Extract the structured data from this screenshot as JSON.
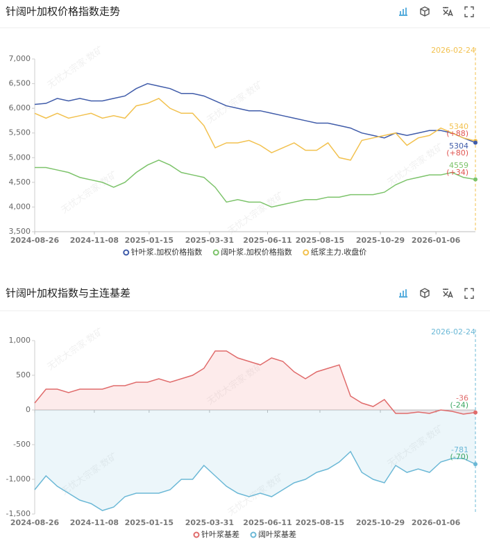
{
  "watermark": "无忧大宗家·数矿",
  "chart_data": [
    {
      "type": "line",
      "title": "针阔叶加权价格指数走势",
      "x": [
        "2024-08-26",
        "2024-09-09",
        "2024-09-23",
        "2024-10-07",
        "2024-10-21",
        "2024-11-04",
        "2024-11-18",
        "2024-12-02",
        "2024-12-16",
        "2024-12-30",
        "2025-01-13",
        "2025-01-27",
        "2025-02-10",
        "2025-02-24",
        "2025-03-10",
        "2025-03-24",
        "2025-04-07",
        "2025-04-21",
        "2025-05-05",
        "2025-05-19",
        "2025-06-02",
        "2025-06-16",
        "2025-06-30",
        "2025-07-14",
        "2025-07-28",
        "2025-08-11",
        "2025-08-25",
        "2025-09-08",
        "2025-09-22",
        "2025-10-06",
        "2025-10-20",
        "2025-11-03",
        "2025-11-17",
        "2025-12-01",
        "2025-12-15",
        "2025-12-29",
        "2026-01-12",
        "2026-01-26",
        "2026-02-09",
        "2026-02-24"
      ],
      "xlim": [
        "2024-08-26",
        "2026-02-24"
      ],
      "xticks": [
        "2024-08-26",
        "2024-11-08",
        "2025-01-15",
        "2025-03-31",
        "2025-06-11",
        "2025-08-15",
        "2025-10-29",
        "2026-01-06"
      ],
      "ylim": [
        3500,
        7000
      ],
      "yticks": [
        {
          "value": 3500,
          "label": "3,500"
        },
        {
          "value": 4000,
          "label": "4,000"
        },
        {
          "value": 4500,
          "label": "4,500"
        },
        {
          "value": 5000,
          "label": "5,000"
        },
        {
          "value": 5500,
          "label": "5,500"
        },
        {
          "value": 6000,
          "label": "6,000"
        },
        {
          "value": 6500,
          "label": "6,500"
        },
        {
          "value": 7000,
          "label": "7,000"
        }
      ],
      "cursor_color": "#f2c14e",
      "series": [
        {
          "name": "针叶浆.加权价格指数",
          "color": "#3f5ba9",
          "change_label": "(+80)",
          "change_color": "#e0534f",
          "values": [
            6080,
            6100,
            6200,
            6150,
            6200,
            6150,
            6150,
            6200,
            6250,
            6400,
            6500,
            6450,
            6400,
            6300,
            6300,
            6250,
            6150,
            6050,
            6000,
            5950,
            5950,
            5900,
            5850,
            5800,
            5750,
            5700,
            5700,
            5650,
            5600,
            5500,
            5450,
            5400,
            5500,
            5450,
            5500,
            5550,
            5550,
            5500,
            5400,
            5304
          ]
        },
        {
          "name": "阔叶浆.加权价格指数",
          "color": "#7cc36a",
          "change_label": "(+34)",
          "change_color": "#e0534f",
          "values": [
            4800,
            4800,
            4750,
            4700,
            4600,
            4550,
            4500,
            4400,
            4500,
            4700,
            4850,
            4950,
            4850,
            4700,
            4650,
            4600,
            4400,
            4100,
            4150,
            4100,
            4100,
            4000,
            4050,
            4100,
            4150,
            4150,
            4200,
            4200,
            4250,
            4250,
            4250,
            4300,
            4450,
            4550,
            4600,
            4650,
            4650,
            4700,
            4600,
            4559
          ]
        },
        {
          "name": "纸浆主力.收盘价",
          "color": "#f2c14e",
          "change_label": "(+88)",
          "change_color": "#e0534f",
          "values": [
            5900,
            5800,
            5900,
            5800,
            5850,
            5900,
            5800,
            5850,
            5800,
            6050,
            6100,
            6200,
            6000,
            5900,
            5900,
            5650,
            5200,
            5300,
            5300,
            5350,
            5250,
            5100,
            5200,
            5300,
            5150,
            5150,
            5300,
            5000,
            4950,
            5350,
            5400,
            5450,
            5500,
            5250,
            5400,
            5450,
            5600,
            5500,
            5400,
            5340
          ]
        }
      ]
    },
    {
      "type": "line",
      "title": "针阔叶加权指数与主连基差",
      "x": [
        "2024-08-26",
        "2024-09-09",
        "2024-09-23",
        "2024-10-07",
        "2024-10-21",
        "2024-11-04",
        "2024-11-18",
        "2024-12-02",
        "2024-12-16",
        "2024-12-30",
        "2025-01-13",
        "2025-01-27",
        "2025-02-10",
        "2025-02-24",
        "2025-03-10",
        "2025-03-24",
        "2025-04-07",
        "2025-04-21",
        "2025-05-05",
        "2025-05-19",
        "2025-06-02",
        "2025-06-16",
        "2025-06-30",
        "2025-07-14",
        "2025-07-28",
        "2025-08-11",
        "2025-08-25",
        "2025-09-08",
        "2025-09-22",
        "2025-10-06",
        "2025-10-20",
        "2025-11-03",
        "2025-11-17",
        "2025-12-01",
        "2025-12-15",
        "2025-12-29",
        "2026-01-12",
        "2026-01-26",
        "2026-02-09",
        "2026-02-24"
      ],
      "xlim": [
        "2024-08-26",
        "2026-02-24"
      ],
      "xticks": [
        "2024-08-26",
        "2024-11-08",
        "2025-01-15",
        "2025-03-31",
        "2025-06-11",
        "2025-08-15",
        "2025-10-29",
        "2026-01-06"
      ],
      "ylim": [
        -1500,
        1000
      ],
      "yticks": [
        {
          "value": -1500,
          "label": "-1,500"
        },
        {
          "value": -1000,
          "label": "-1,000"
        },
        -500,
        0,
        500,
        {
          "value": 1000,
          "label": "1,000"
        }
      ],
      "cursor_color": "#6bb8d6",
      "area": true,
      "series": [
        {
          "name": "针叶浆基差",
          "color": "#e06b6b",
          "fill": "rgba(240,120,120,0.15)",
          "change_label": "(-24)",
          "change_color": "#3aa661",
          "values": [
            100,
            300,
            300,
            250,
            300,
            300,
            300,
            350,
            350,
            400,
            400,
            450,
            400,
            450,
            500,
            600,
            850,
            850,
            750,
            700,
            650,
            750,
            700,
            550,
            450,
            550,
            600,
            650,
            200,
            100,
            50,
            150,
            -50,
            -50,
            -30,
            -50,
            0,
            -20,
            -60,
            -36
          ]
        },
        {
          "name": "阔叶浆基差",
          "color": "#6bb8d6",
          "fill": "rgba(107,184,214,0.13)",
          "change_label": "(-70)",
          "change_color": "#3aa661",
          "values": [
            -1150,
            -950,
            -1100,
            -1200,
            -1300,
            -1350,
            -1450,
            -1400,
            -1250,
            -1200,
            -1200,
            -1200,
            -1150,
            -1000,
            -1000,
            -800,
            -950,
            -1100,
            -1200,
            -1250,
            -1200,
            -1250,
            -1150,
            -1050,
            -1000,
            -900,
            -850,
            -750,
            -600,
            -900,
            -1000,
            -1050,
            -800,
            -900,
            -850,
            -900,
            -750,
            -700,
            -700,
            -781
          ]
        }
      ]
    }
  ]
}
